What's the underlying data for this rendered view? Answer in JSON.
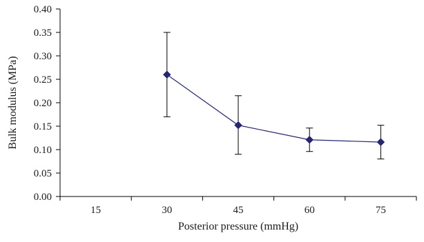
{
  "chart_data": {
    "type": "line",
    "title": "",
    "xlabel": "Posterior pressure (mmHg)",
    "ylabel": "Bulk modulus (MPa)",
    "categories": [
      "15",
      "30",
      "45",
      "60",
      "75"
    ],
    "ylim": [
      0,
      0.4
    ],
    "yticks": [
      "0.00",
      "0.05",
      "0.10",
      "0.15",
      "0.20",
      "0.25",
      "0.30",
      "0.35",
      "0.40"
    ],
    "grid": false,
    "legend": "none",
    "series": [
      {
        "points": [
          {
            "x": "30",
            "y": 0.26,
            "err_low": 0.17,
            "err_high": 0.35
          },
          {
            "x": "45",
            "y": 0.152,
            "err_low": 0.09,
            "err_high": 0.215
          },
          {
            "x": "60",
            "y": 0.121,
            "err_low": 0.096,
            "err_high": 0.146
          },
          {
            "x": "75",
            "y": 0.116,
            "err_low": 0.08,
            "err_high": 0.152
          }
        ]
      }
    ],
    "colors": {
      "series": "#262673",
      "axis": "#000000",
      "errorbar": "#000000"
    }
  }
}
